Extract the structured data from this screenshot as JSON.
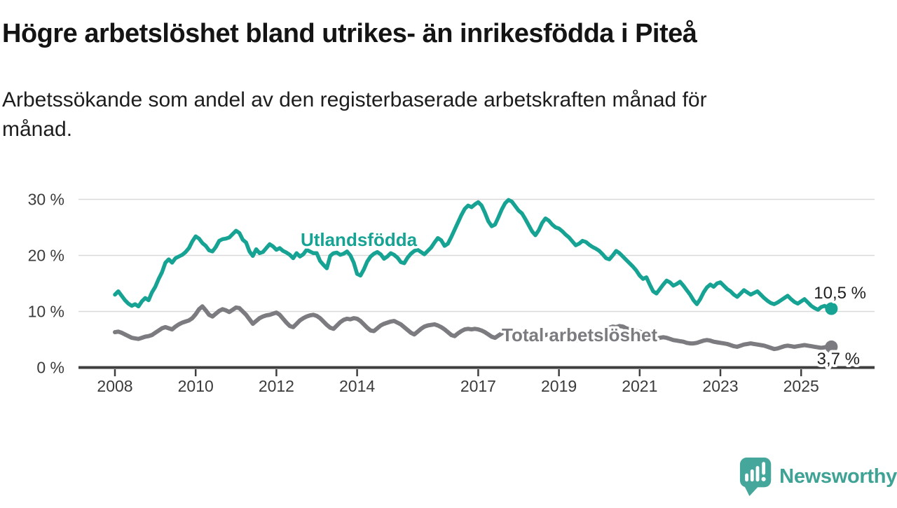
{
  "header": {
    "title": "Högre arbetslöshet bland utrikes- än inrikesfödda i Piteå",
    "subtitle": "Arbetssökande som andel av den registerbaserade arbetskraften månad för\nmånad."
  },
  "footer": {
    "brand": "Newsworthy"
  },
  "colors": {
    "accent_teal": "#17a394",
    "line_gray": "#7b7b80",
    "axis": "#3f3f3f",
    "gridline": "#d9d9d9",
    "text_dark": "#1e1e1e",
    "logo_teal": "#45a79b"
  },
  "chart_data": {
    "type": "line",
    "title": "Högre arbetslöshet bland utrikes- än inrikesfödda i Piteå",
    "subtitle": "Arbetssökande som andel av den registerbaserade arbetskraften månad för månad.",
    "xlabel": "",
    "ylabel": "",
    "x_start_year": 2008,
    "points_per_year": 12,
    "x_tick_years": [
      2008,
      2010,
      2012,
      2014,
      2017,
      2019,
      2021,
      2023,
      2025
    ],
    "y_ticks": [
      {
        "value": 0,
        "label": "0 %"
      },
      {
        "value": 10,
        "label": "10 %"
      },
      {
        "value": 20,
        "label": "20 %"
      },
      {
        "value": 30,
        "label": "30 %"
      }
    ],
    "ylim": [
      0,
      32
    ],
    "grid": "horizontal",
    "legend_position": "inline-labels",
    "series": [
      {
        "name": "Utlandsfödda",
        "color": "#17a394",
        "end_label": "10,5 %",
        "end_value": 10.5,
        "values": [
          13.0,
          13.6,
          12.8,
          12.0,
          11.4,
          11.0,
          11.3,
          10.9,
          11.8,
          12.4,
          12.0,
          13.4,
          14.4,
          15.8,
          17.0,
          18.7,
          19.3,
          18.7,
          19.5,
          19.8,
          20.1,
          20.6,
          21.3,
          22.5,
          23.4,
          23.0,
          22.2,
          21.7,
          20.9,
          20.7,
          21.5,
          22.6,
          22.9,
          23.0,
          23.2,
          23.8,
          24.4,
          24.0,
          22.8,
          22.3,
          20.7,
          19.9,
          21.1,
          20.4,
          20.6,
          21.3,
          22.0,
          21.6,
          21.0,
          21.3,
          20.8,
          20.5,
          20.1,
          19.5,
          20.4,
          19.8,
          20.2,
          21.0,
          20.7,
          20.4,
          20.4,
          19.0,
          18.3,
          17.7,
          19.9,
          20.4,
          20.5,
          20.1,
          20.3,
          20.7,
          20.0,
          18.7,
          16.7,
          16.4,
          17.5,
          18.9,
          19.8,
          20.3,
          20.6,
          20.2,
          19.4,
          19.8,
          20.4,
          20.1,
          19.6,
          18.8,
          18.6,
          19.6,
          20.3,
          20.8,
          21.0,
          20.6,
          20.2,
          20.8,
          21.4,
          22.3,
          23.1,
          22.7,
          21.7,
          22.1,
          23.3,
          24.6,
          25.9,
          27.2,
          28.3,
          28.9,
          28.6,
          29.1,
          29.5,
          28.9,
          27.6,
          26.1,
          25.2,
          25.5,
          26.8,
          28.2,
          29.3,
          29.9,
          29.6,
          28.8,
          28.0,
          27.5,
          26.5,
          25.4,
          24.3,
          23.6,
          24.5,
          25.8,
          26.6,
          26.2,
          25.5,
          25.0,
          24.8,
          24.3,
          23.7,
          23.2,
          22.5,
          21.8,
          22.1,
          22.6,
          22.4,
          21.9,
          21.5,
          21.2,
          20.8,
          20.2,
          19.5,
          19.3,
          20.0,
          20.8,
          20.4,
          19.8,
          19.2,
          18.6,
          18.0,
          17.3,
          16.4,
          15.8,
          16.1,
          14.8,
          13.6,
          13.2,
          14.0,
          14.8,
          15.5,
          15.2,
          14.6,
          14.9,
          15.3,
          14.6,
          13.8,
          13.0,
          12.0,
          11.3,
          12.2,
          13.4,
          14.3,
          14.8,
          14.4,
          15.0,
          15.2,
          14.6,
          14.0,
          13.6,
          13.0,
          12.6,
          13.2,
          13.8,
          13.4,
          13.0,
          13.3,
          13.6,
          13.0,
          12.4,
          11.9,
          11.5,
          11.3,
          11.6,
          12.0,
          12.4,
          12.8,
          12.2,
          11.7,
          11.4,
          11.8,
          12.2,
          11.6,
          11.0,
          10.6,
          10.3,
          10.8,
          11.0,
          10.6,
          10.5
        ]
      },
      {
        "name": "Total arbetslöshet",
        "color": "#7b7b80",
        "end_label": "3,7 %",
        "end_value": 3.7,
        "values": [
          6.3,
          6.4,
          6.2,
          5.9,
          5.6,
          5.3,
          5.2,
          5.1,
          5.3,
          5.5,
          5.6,
          5.8,
          6.2,
          6.6,
          7.0,
          7.2,
          7.0,
          6.8,
          7.3,
          7.7,
          8.0,
          8.2,
          8.4,
          8.8,
          9.5,
          10.4,
          10.9,
          10.2,
          9.4,
          9.1,
          9.6,
          10.1,
          10.4,
          10.2,
          9.9,
          10.3,
          10.7,
          10.6,
          10.0,
          9.4,
          8.6,
          7.8,
          8.3,
          8.8,
          9.1,
          9.3,
          9.4,
          9.6,
          9.8,
          9.4,
          8.7,
          8.0,
          7.4,
          7.2,
          7.8,
          8.4,
          8.8,
          9.1,
          9.3,
          9.4,
          9.2,
          8.8,
          8.2,
          7.6,
          7.1,
          6.9,
          7.5,
          8.1,
          8.5,
          8.7,
          8.6,
          8.8,
          8.7,
          8.3,
          7.7,
          7.1,
          6.6,
          6.5,
          7.0,
          7.5,
          7.8,
          8.0,
          8.2,
          8.3,
          8.0,
          7.7,
          7.2,
          6.7,
          6.2,
          5.9,
          6.4,
          6.9,
          7.3,
          7.5,
          7.6,
          7.7,
          7.5,
          7.2,
          6.8,
          6.3,
          5.8,
          5.6,
          6.1,
          6.5,
          6.8,
          6.9,
          6.8,
          6.9,
          6.8,
          6.6,
          6.3,
          5.9,
          5.5,
          5.3,
          5.7,
          6.1,
          6.3,
          6.4,
          6.3,
          6.4,
          6.3,
          6.1,
          5.8,
          5.4,
          5.1,
          4.9,
          5.3,
          5.6,
          5.8,
          5.9,
          5.8,
          5.9,
          5.9,
          5.7,
          5.5,
          5.2,
          4.9,
          4.8,
          5.2,
          5.5,
          5.7,
          5.8,
          5.9,
          6.0,
          6.1,
          6.2,
          6.6,
          7.1,
          7.3,
          7.2,
          7.4,
          7.3,
          7.0,
          6.8,
          6.6,
          6.5,
          6.4,
          6.2,
          5.9,
          5.6,
          5.3,
          5.1,
          5.3,
          5.4,
          5.3,
          5.1,
          4.9,
          4.8,
          4.7,
          4.6,
          4.4,
          4.3,
          4.3,
          4.4,
          4.6,
          4.8,
          4.9,
          4.8,
          4.6,
          4.5,
          4.4,
          4.3,
          4.2,
          4.0,
          3.8,
          3.7,
          3.9,
          4.1,
          4.2,
          4.3,
          4.2,
          4.1,
          4.0,
          3.9,
          3.7,
          3.5,
          3.3,
          3.4,
          3.6,
          3.8,
          3.9,
          3.8,
          3.7,
          3.8,
          3.9,
          4.0,
          3.9,
          3.8,
          3.7,
          3.6,
          3.5,
          3.6,
          3.8,
          3.7
        ]
      }
    ]
  }
}
